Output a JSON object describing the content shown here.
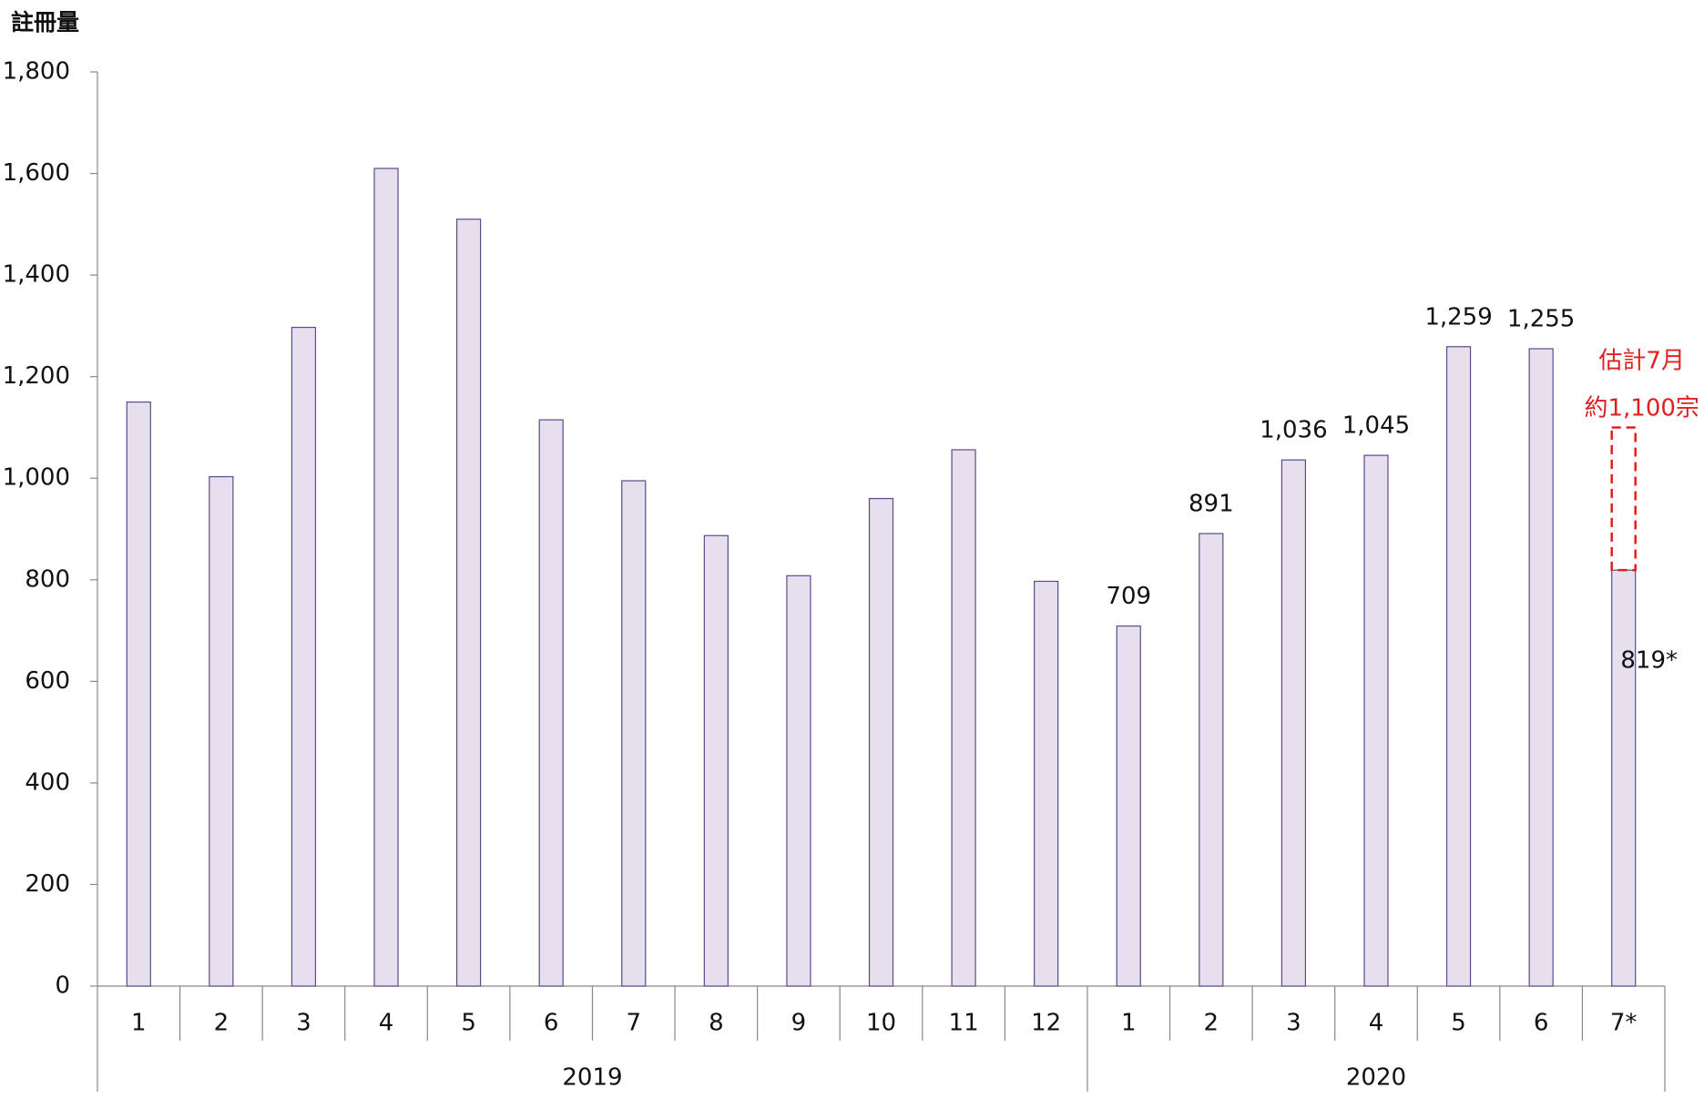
{
  "chart_data": {
    "type": "bar",
    "y_label": "註冊量",
    "groups": [
      {
        "name": "2019",
        "categories": [
          "1",
          "2",
          "3",
          "4",
          "5",
          "6",
          "7",
          "8",
          "9",
          "10",
          "11",
          "12"
        ]
      },
      {
        "name": "2020",
        "categories": [
          "1",
          "2",
          "3",
          "4",
          "5",
          "6",
          "7*"
        ]
      }
    ],
    "values": [
      1150,
      1003,
      1297,
      1610,
      1510,
      1115,
      995,
      887,
      808,
      960,
      1056,
      797,
      709,
      891,
      1036,
      1045,
      1259,
      1255,
      819
    ],
    "value_labels": [
      null,
      null,
      null,
      null,
      null,
      null,
      null,
      null,
      null,
      null,
      null,
      null,
      "709",
      "891",
      "1,036",
      "1,045",
      "1,259",
      "1,255",
      "819*"
    ],
    "color": "#e6e0ee",
    "edge_color": "#5b4a8a",
    "estimate": {
      "value": 1100,
      "texts": [
        "估計7月",
        "約1,100宗"
      ],
      "color": "#e02020"
    },
    "ylim": [
      0,
      1800
    ],
    "yticks": [
      0,
      200,
      400,
      600,
      800,
      {
        "value": 1000,
        "label": "1,000"
      },
      {
        "value": 1200,
        "label": "1,200"
      },
      {
        "value": 1400,
        "label": "1,400"
      },
      {
        "value": 1600,
        "label": "1,600"
      },
      {
        "value": 1800,
        "label": "1,800"
      }
    ]
  }
}
